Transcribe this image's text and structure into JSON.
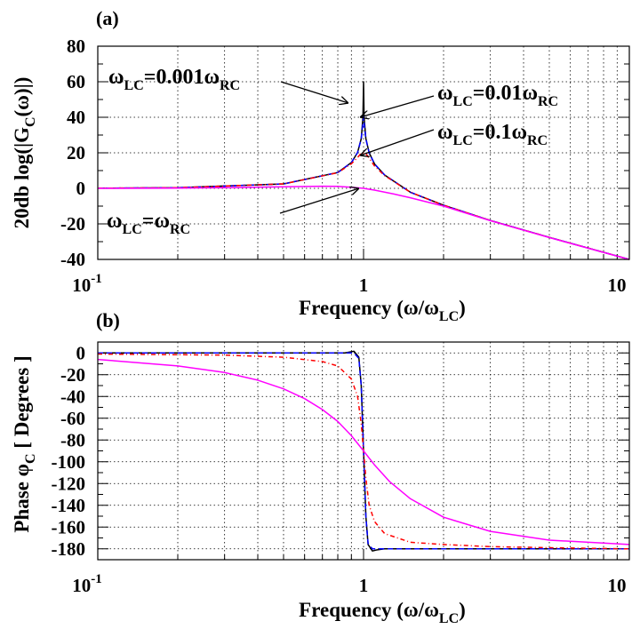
{
  "chart_data": [
    {
      "panel_label": "(a)",
      "type": "line",
      "x_scale": "log",
      "xlim": [
        0.1,
        10
      ],
      "ylim": [
        -40,
        80
      ],
      "x_ticks": [
        0.1,
        1,
        10
      ],
      "x_tick_labels": [
        {
          "base": "10",
          "exp": "-1"
        },
        {
          "base": "1",
          "exp": ""
        },
        {
          "base": "10",
          "exp": ""
        }
      ],
      "y_ticks": [
        -40,
        -20,
        0,
        20,
        40,
        60,
        80
      ],
      "y_tick_labels": [
        "-40",
        "-20",
        "0",
        "20",
        "40",
        "60",
        "80"
      ],
      "xlabel": {
        "main": "Frequency (ω/ω",
        "sub": "LC",
        "tail": ")"
      },
      "ylabel": {
        "main": "20db log(|G",
        "sub": "C",
        "tail": "(ω)|)"
      },
      "grid": true,
      "series": [
        {
          "ratio": 0.001,
          "color": "#000000",
          "dash": "",
          "x": [
            0.1,
            0.2,
            0.5,
            0.8,
            0.9,
            0.95,
            0.98,
            0.995,
            1.0,
            1.005,
            1.02,
            1.05,
            1.1,
            1.2,
            1.5,
            2,
            3,
            5,
            10
          ],
          "y": [
            0.1,
            0.35,
            2.5,
            8.9,
            14.5,
            20.2,
            28.0,
            40.0,
            60.0,
            40.0,
            28.0,
            20.0,
            13.7,
            7.5,
            -2.2,
            -9.5,
            -18.1,
            -27.6,
            -40.0
          ]
        },
        {
          "ratio": 0.01,
          "color": "#0000ff",
          "dash": "6 4",
          "x": [
            0.1,
            0.2,
            0.5,
            0.8,
            0.9,
            0.95,
            0.98,
            0.995,
            1.0,
            1.005,
            1.02,
            1.05,
            1.1,
            1.2,
            1.5,
            2,
            3,
            5,
            10
          ],
          "y": [
            0.1,
            0.35,
            2.5,
            8.9,
            14.5,
            20.2,
            27.9,
            37.0,
            40.0,
            37.0,
            27.9,
            20.0,
            13.7,
            7.5,
            -2.2,
            -9.5,
            -18.1,
            -27.6,
            -40.0
          ]
        },
        {
          "ratio": 0.1,
          "color": "#ff0000",
          "dash": "5 3 1 3",
          "x": [
            0.1,
            0.2,
            0.5,
            0.8,
            0.9,
            0.95,
            0.98,
            0.995,
            1.0,
            1.005,
            1.02,
            1.05,
            1.1,
            1.2,
            1.5,
            2,
            3,
            5,
            10
          ],
          "y": [
            0.1,
            0.35,
            2.5,
            8.8,
            13.8,
            17.4,
            19.8,
            20.0,
            20.0,
            20.0,
            19.6,
            17.0,
            12.5,
            7.2,
            -2.2,
            -9.5,
            -18.1,
            -27.6,
            -40.0
          ]
        },
        {
          "ratio": 1,
          "color": "#ff00ff",
          "dash": "",
          "x": [
            0.1,
            0.2,
            0.3,
            0.5,
            0.7,
            0.8,
            0.9,
            1.0,
            1.1,
            1.3,
            1.5,
            2,
            3,
            5,
            10
          ],
          "y": [
            0.0,
            0.15,
            0.35,
            0.9,
            1.2,
            1.1,
            0.6,
            0.0,
            -1.0,
            -3.2,
            -5.3,
            -10.0,
            -18.2,
            -27.7,
            -40.0
          ]
        }
      ],
      "annotations": [
        {
          "main": "ω",
          "sub": "LC",
          "mid": "=0.001ω",
          "sub2": "RC"
        },
        {
          "main": "ω",
          "sub": "LC",
          "mid": "=0.01ω",
          "sub2": "RC"
        },
        {
          "main": "ω",
          "sub": "LC",
          "mid": "=0.1ω",
          "sub2": "RC"
        },
        {
          "main": "ω",
          "sub": "LC",
          "mid": "=ω",
          "sub2": "RC"
        }
      ]
    },
    {
      "panel_label": "(b)",
      "type": "line",
      "x_scale": "log",
      "xlim": [
        0.1,
        10
      ],
      "ylim": [
        -190,
        10
      ],
      "x_ticks": [
        0.1,
        1,
        10
      ],
      "x_tick_labels": [
        {
          "base": "10",
          "exp": "-1"
        },
        {
          "base": "1",
          "exp": ""
        },
        {
          "base": "10",
          "exp": ""
        }
      ],
      "y_ticks": [
        -180,
        -160,
        -140,
        -120,
        -100,
        -80,
        -60,
        -40,
        -20,
        0
      ],
      "y_tick_labels": [
        "-180",
        "-160",
        "-140",
        "-120",
        "-100",
        "-80",
        "-60",
        "-40",
        "-20",
        "0"
      ],
      "xlabel": {
        "main": "Frequency (ω/ω",
        "sub": "LC",
        "tail": ")"
      },
      "ylabel": {
        "main": "Phase φ",
        "sub": "C",
        "tail": " [ Degrees ]"
      },
      "grid": true,
      "series": [
        {
          "ratio": 0.001,
          "color": "#000000",
          "dash": "",
          "x": [
            0.1,
            0.5,
            0.85,
            0.92,
            0.96,
            0.98,
            0.99,
            1.0,
            1.01,
            1.02,
            1.04,
            1.08,
            1.12,
            1.2,
            1.5,
            2,
            5,
            10
          ],
          "y": [
            0,
            0,
            0,
            1.5,
            -4,
            -30,
            -60,
            -90,
            -120,
            -150,
            -176,
            -182,
            -181,
            -180,
            -180,
            -180,
            -180,
            -180
          ]
        },
        {
          "ratio": 0.01,
          "color": "#0000ff",
          "dash": "6 4",
          "x": [
            0.1,
            0.5,
            0.85,
            0.92,
            0.96,
            0.98,
            0.99,
            1.0,
            1.01,
            1.02,
            1.04,
            1.08,
            1.12,
            1.2,
            1.5,
            2,
            5,
            10
          ],
          "y": [
            0,
            0,
            0,
            0,
            -5,
            -30,
            -60,
            -90,
            -120,
            -150,
            -175,
            -180,
            -180,
            -180,
            -180,
            -180,
            -180,
            -180
          ]
        },
        {
          "ratio": 0.1,
          "color": "#ff0000",
          "dash": "5 3 1 3",
          "x": [
            0.1,
            0.3,
            0.5,
            0.7,
            0.8,
            0.9,
            0.95,
            0.98,
            1.0,
            1.02,
            1.05,
            1.1,
            1.2,
            1.5,
            2,
            3,
            5,
            10
          ],
          "y": [
            -1,
            -2,
            -4,
            -8,
            -12,
            -24,
            -40,
            -65,
            -90,
            -115,
            -140,
            -155,
            -166,
            -174,
            -176,
            -178,
            -179,
            -180
          ]
        },
        {
          "ratio": 1,
          "color": "#ff00ff",
          "dash": "",
          "x": [
            0.1,
            0.2,
            0.3,
            0.4,
            0.5,
            0.6,
            0.7,
            0.8,
            0.9,
            1.0,
            1.1,
            1.25,
            1.5,
            2,
            3,
            5,
            10
          ],
          "y": [
            -6,
            -12,
            -18,
            -25,
            -33,
            -42,
            -52,
            -63,
            -76,
            -90,
            -103,
            -118,
            -134,
            -151,
            -164,
            -172,
            -176
          ]
        }
      ]
    }
  ]
}
